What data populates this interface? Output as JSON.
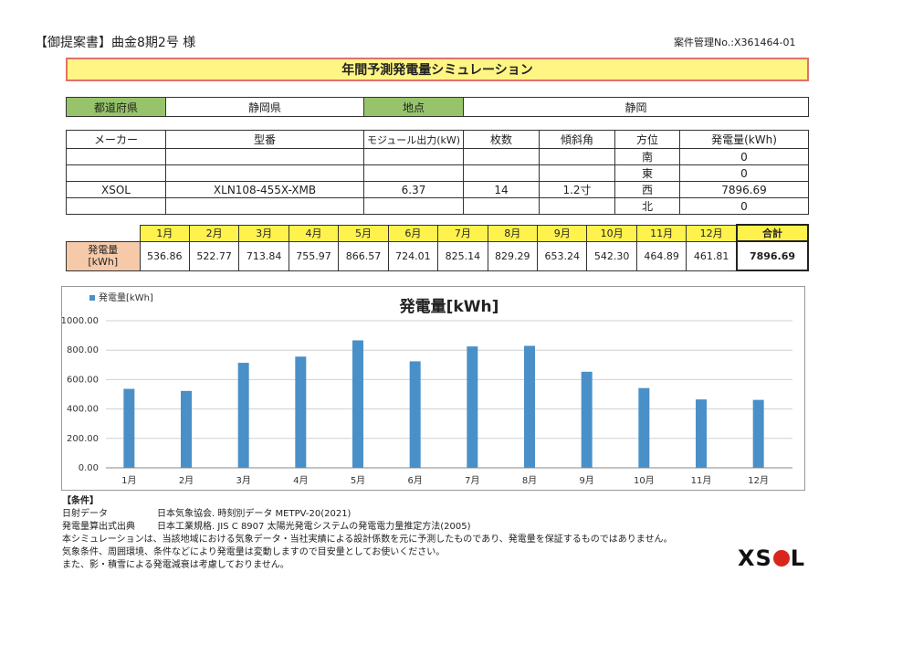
{
  "header": {
    "left": "【御提案書】曲金8期2号 様",
    "right": "案件管理No.:X361464-01"
  },
  "banner_title": "年間予測発電量シミュレーション",
  "location": {
    "pref_label": "都道府県",
    "pref_value": "静岡県",
    "point_label": "地点",
    "point_value": "静岡"
  },
  "spec": {
    "headers": [
      "メーカー",
      "型番",
      "モジュール出力(kW)",
      "枚数",
      "傾斜角",
      "方位",
      "発電量(kWh)"
    ],
    "maker": "XSOL",
    "model": "XLN108-455X-XMB",
    "output": "6.37",
    "count": "14",
    "tilt": "1.2寸",
    "directions": [
      {
        "dir": "南",
        "value": "0"
      },
      {
        "dir": "東",
        "value": "0"
      },
      {
        "dir": "西",
        "value": "7896.69"
      },
      {
        "dir": "北",
        "value": "0"
      }
    ]
  },
  "monthly": {
    "row_label_1": "発電量",
    "row_label_2": "[kWh]",
    "months": [
      "1月",
      "2月",
      "3月",
      "4月",
      "5月",
      "6月",
      "7月",
      "8月",
      "9月",
      "10月",
      "11月",
      "12月"
    ],
    "values": [
      "536.86",
      "522.77",
      "713.84",
      "755.97",
      "866.57",
      "724.01",
      "825.14",
      "829.29",
      "653.24",
      "542.30",
      "464.89",
      "461.81"
    ],
    "total_label": "合計",
    "total": "7896.69"
  },
  "chart_data": {
    "type": "bar",
    "title": "発電量[kWh]",
    "legend": "発電量[kWh]",
    "legend_position": "top-left",
    "categories": [
      "1月",
      "2月",
      "3月",
      "4月",
      "5月",
      "6月",
      "7月",
      "8月",
      "9月",
      "10月",
      "11月",
      "12月"
    ],
    "values": [
      536.86,
      522.77,
      713.84,
      755.97,
      866.57,
      724.01,
      825.14,
      829.29,
      653.24,
      542.3,
      464.89,
      461.81
    ],
    "ylim": [
      0,
      1000
    ],
    "yticks": [
      "0.00",
      "200.00",
      "400.00",
      "600.00",
      "800.00",
      "1000.00"
    ],
    "grid": true,
    "color": "#4a90c8"
  },
  "conditions": {
    "heading": "【条件】",
    "rows": [
      {
        "label": "日射データ",
        "text": "日本気象協会. 時刻別データ METPV-20(2021)"
      },
      {
        "label": "発電量算出式出典",
        "text": "日本工業規格. JIS C 8907 太陽光発電システムの発電電力量推定方法(2005)"
      }
    ],
    "notes": [
      "本シミュレーションは、当該地域における気象データ・当社実績による設計係数を元に予測したものであり、発電量を保証するものではありません。",
      "気象条件、周囲環境、条件などにより発電量は変動しますので目安量としてお使いください。",
      "また、影・積雪による発電減衰は考慮しておりません。"
    ]
  },
  "logo": {
    "left": "XS",
    "right": "L"
  }
}
